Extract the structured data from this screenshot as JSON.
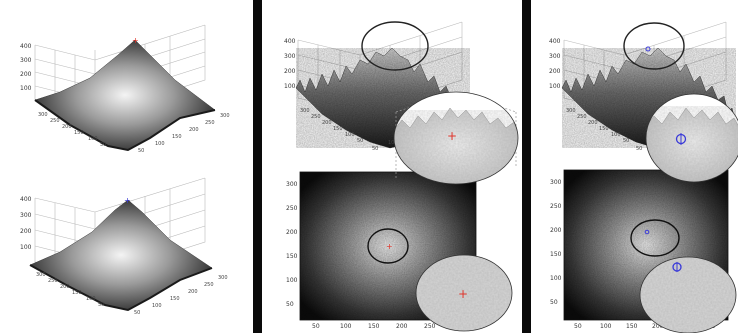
{
  "colors": {
    "background": "#ffffff",
    "divider": "#0a0a0a",
    "peak_marker_red": "#e0342a",
    "peak_marker_blue": "#3a3ad8",
    "zoom_circle": "#222222",
    "grid": "#b9b9b9"
  },
  "panels": [
    {
      "id": "left",
      "plots": [
        {
          "kind": "surface-3d-smooth",
          "marker": "red-plus",
          "z_ticks": [
            "400",
            "300",
            "200",
            "100"
          ],
          "x_ticks": [
            "300",
            "250",
            "200",
            "150",
            "100",
            "50"
          ],
          "y_ticks": [
            "50",
            "100",
            "150",
            "200",
            "250",
            "300"
          ]
        },
        {
          "kind": "surface-3d-smooth",
          "marker": "blue-plus",
          "z_ticks": [
            "400",
            "300",
            "200",
            "100"
          ],
          "x_ticks": [
            "300",
            "250",
            "200",
            "150",
            "100",
            "50"
          ],
          "y_ticks": [
            "50",
            "100",
            "150",
            "200",
            "250",
            "300"
          ]
        }
      ]
    },
    {
      "id": "middle",
      "plots": [
        {
          "kind": "surface-3d-noisy",
          "marker": "red-plus",
          "z_ticks": [
            "400",
            "300",
            "200",
            "100"
          ],
          "x_ticks": [
            "300",
            "250",
            "200",
            "150",
            "100",
            "50"
          ],
          "y_ticks": [
            "50",
            "100",
            "150",
            "200",
            "250"
          ]
        },
        {
          "kind": "heatmap-2d",
          "marker": "red-plus",
          "y_ticks": [
            "300",
            "250",
            "200",
            "150",
            "100",
            "50"
          ],
          "x_ticks": [
            "50",
            "100",
            "150",
            "200",
            "250",
            "300"
          ]
        }
      ]
    },
    {
      "id": "right",
      "plots": [
        {
          "kind": "surface-3d-noisy",
          "marker": "blue-circle",
          "z_ticks": [
            "400",
            "300",
            "200",
            "100"
          ],
          "x_ticks": [
            "300",
            "250",
            "200",
            "150",
            "100",
            "50"
          ],
          "y_ticks": [
            "50",
            "100",
            "150",
            "200",
            "250"
          ]
        },
        {
          "kind": "heatmap-2d",
          "marker": "blue-circle",
          "y_ticks": [
            "300",
            "250",
            "200",
            "150",
            "100",
            "50"
          ],
          "x_ticks": [
            "50",
            "100",
            "150",
            "200",
            "250",
            "300"
          ]
        }
      ]
    }
  ]
}
